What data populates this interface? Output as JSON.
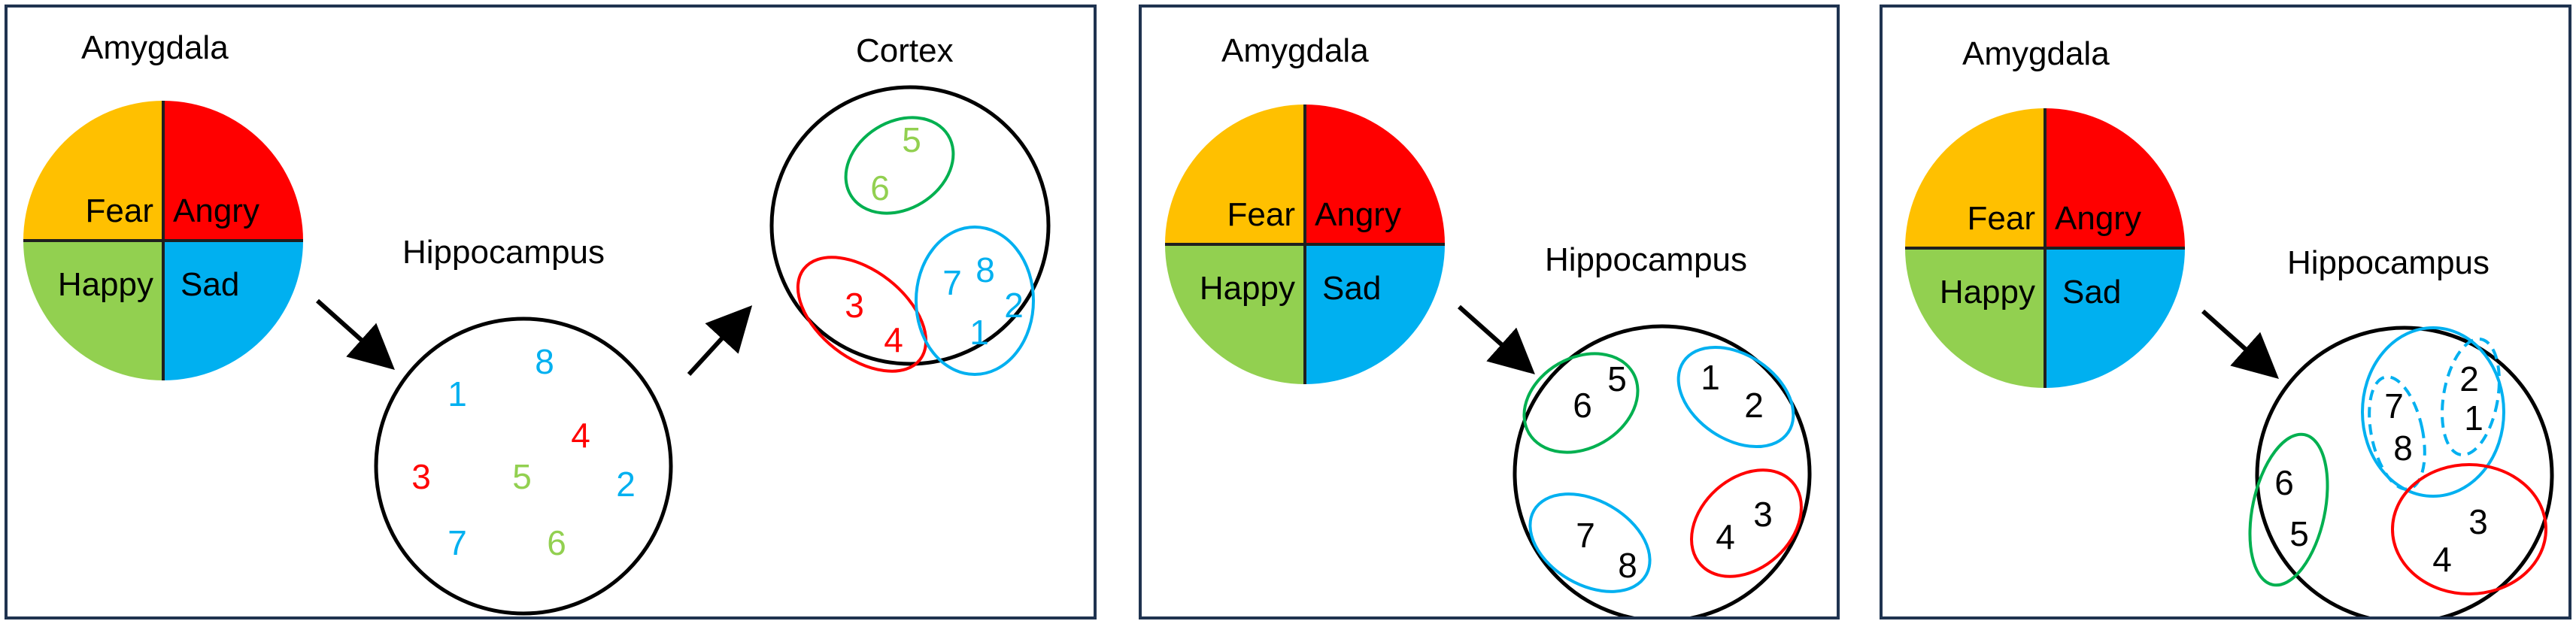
{
  "colors": {
    "fear": "#FFC000",
    "angry": "#FF0000",
    "happy": "#92D050",
    "sad": "#00B0F0",
    "frame": "#1F3350",
    "num_blue": "#00B0F0",
    "num_red": "#FF0000",
    "num_green": "#92D050",
    "oval_green": "#00B050",
    "oval_red": "#FF0000",
    "oval_blue": "#00B0F0"
  },
  "quadrant_labels": {
    "fear": "Fear",
    "angry": "Angry",
    "happy": "Happy",
    "sad": "Sad"
  },
  "panel1": {
    "amygdala_title": "Amygdala",
    "hippocampus_title": "Hippocampus",
    "cortex_title": "Cortex",
    "hippocampus_numbers": [
      "8",
      "1",
      "4",
      "3",
      "5",
      "2",
      "7",
      "6"
    ],
    "cortex_numbers": [
      "5",
      "6",
      "7",
      "8",
      "2",
      "3",
      "4",
      "1"
    ]
  },
  "panel2": {
    "amygdala_title": "Amygdala",
    "hippocampus_title": "Hippocampus",
    "numbers": [
      "5",
      "6",
      "1",
      "2",
      "7",
      "8",
      "4",
      "3"
    ]
  },
  "panel3": {
    "amygdala_title": "Amygdala",
    "hippocampus_title": "Hippocampus",
    "numbers": [
      "2",
      "7",
      "1",
      "8",
      "6",
      "5",
      "3",
      "4"
    ]
  }
}
